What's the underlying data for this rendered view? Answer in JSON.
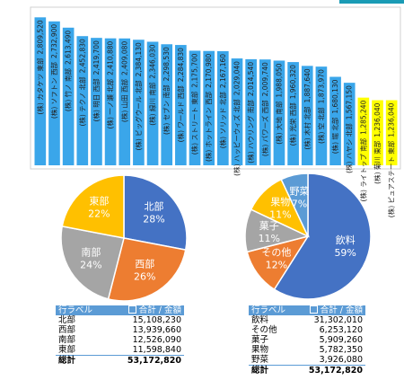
{
  "chart_data": [
    {
      "type": "bar",
      "categories": [
        "(株) カタケツ 東部",
        "(株) ソフトン 西部",
        "(株) 竹ノ 南部",
        "(株) テクノ 北部",
        "(株) 明日 西部",
        "(株) 一ノ瀬 北部",
        "(株) 山田 西部",
        "(株) ビッグウール 北部",
        "(株) 緑川 南部",
        "(株) セブン 南部",
        "(株) ワールド 西部",
        "(株) ストリート 東部",
        "(株) ホットライン 西部",
        "(株) ソリッド 北部",
        "(株) ハッピーウィズ 北部",
        "(株) ハウリング 南部",
        "(株) パワーズ 西部",
        "(株) 大地 南部",
        "(株) 光栄 西部",
        "(株) 木村 北部",
        "(株) 空 北部",
        "(株) 堀 北部",
        "(株) ハヤシ 北部",
        "(株) ライトップ 南部",
        "(株) 菊川 東部",
        "(株) ピュアステート 東部"
      ],
      "values": [
        2809520,
        2732900,
        2613490,
        2452830,
        2419700,
        2410880,
        2409080,
        2384130,
        2346030,
        2298530,
        2284830,
        2175700,
        2170980,
        2167160,
        2029040,
        2014540,
        2009740,
        1988050,
        1960320,
        1887640,
        1873970,
        1680130,
        1567150,
        1285240,
        1236040,
        1236040
      ],
      "value_labels": [
        "2,809,520",
        "2,732,900",
        "2,613,490",
        "2,452,830",
        "2,419,700",
        "2,410,880",
        "2,409,080",
        "2,384,130",
        "2,346,030",
        "2,298,530",
        "2,284,830",
        "2,175,700",
        "2,170,980",
        "2,167,160",
        "2,029,040",
        "2,014,540",
        "2,009,740",
        "1,988,050",
        "1,960,320",
        "1,887,640",
        "1,873,970",
        "1,680,130",
        "1,567,150",
        "1,285,240",
        "1,236,040",
        "1,236,040"
      ],
      "colors": [
        "#3aa6ea",
        "#3aa6ea",
        "#3aa6ea",
        "#3aa6ea",
        "#3aa6ea",
        "#3aa6ea",
        "#3aa6ea",
        "#3aa6ea",
        "#3aa6ea",
        "#3aa6ea",
        "#3aa6ea",
        "#3aa6ea",
        "#3aa6ea",
        "#3aa6ea",
        "#3aa6ea",
        "#3aa6ea",
        "#3aa6ea",
        "#3aa6ea",
        "#3aa6ea",
        "#3aa6ea",
        "#3aa6ea",
        "#3aa6ea",
        "#3aa6ea",
        "#ffff00",
        "#ffff00",
        "#ffff00"
      ],
      "ylim": [
        0,
        2900000
      ]
    },
    {
      "type": "pie",
      "categories": [
        "北部",
        "西部",
        "南部",
        "東部"
      ],
      "values": [
        28,
        26,
        24,
        22
      ],
      "value_labels": [
        "28%",
        "26%",
        "24%",
        "22%"
      ],
      "colors": [
        "#4472c4",
        "#ed7d31",
        "#a5a5a5",
        "#ffc000"
      ]
    },
    {
      "type": "pie",
      "categories": [
        "飲料",
        "その他",
        "菓子",
        "果物",
        "野菜"
      ],
      "values": [
        59,
        12,
        11,
        11,
        7
      ],
      "value_labels": [
        "59%",
        "12%",
        "11%",
        "11%",
        "7%"
      ],
      "colors": [
        "#4472c4",
        "#ed7d31",
        "#a5a5a5",
        "#ffc000",
        "#5b9bd5"
      ]
    }
  ],
  "tables": [
    {
      "header": [
        "行ラベル",
        "合計 / 金額"
      ],
      "rows": [
        [
          "北部",
          "15,108,230"
        ],
        [
          "西部",
          "13,939,660"
        ],
        [
          "南部",
          "12,526,090"
        ],
        [
          "東部",
          "11,598,840"
        ]
      ],
      "total": [
        "総計",
        "53,172,820"
      ]
    },
    {
      "header": [
        "行ラベル",
        "合計 / 金額"
      ],
      "rows": [
        [
          "飲料",
          "31,302,010"
        ],
        [
          "その他",
          "6,253,120"
        ],
        [
          "菓子",
          "5,909,260"
        ],
        [
          "果物",
          "5,782,350"
        ],
        [
          "野菜",
          "3,926,080"
        ]
      ],
      "total": [
        "総計",
        "53,172,820"
      ]
    }
  ]
}
